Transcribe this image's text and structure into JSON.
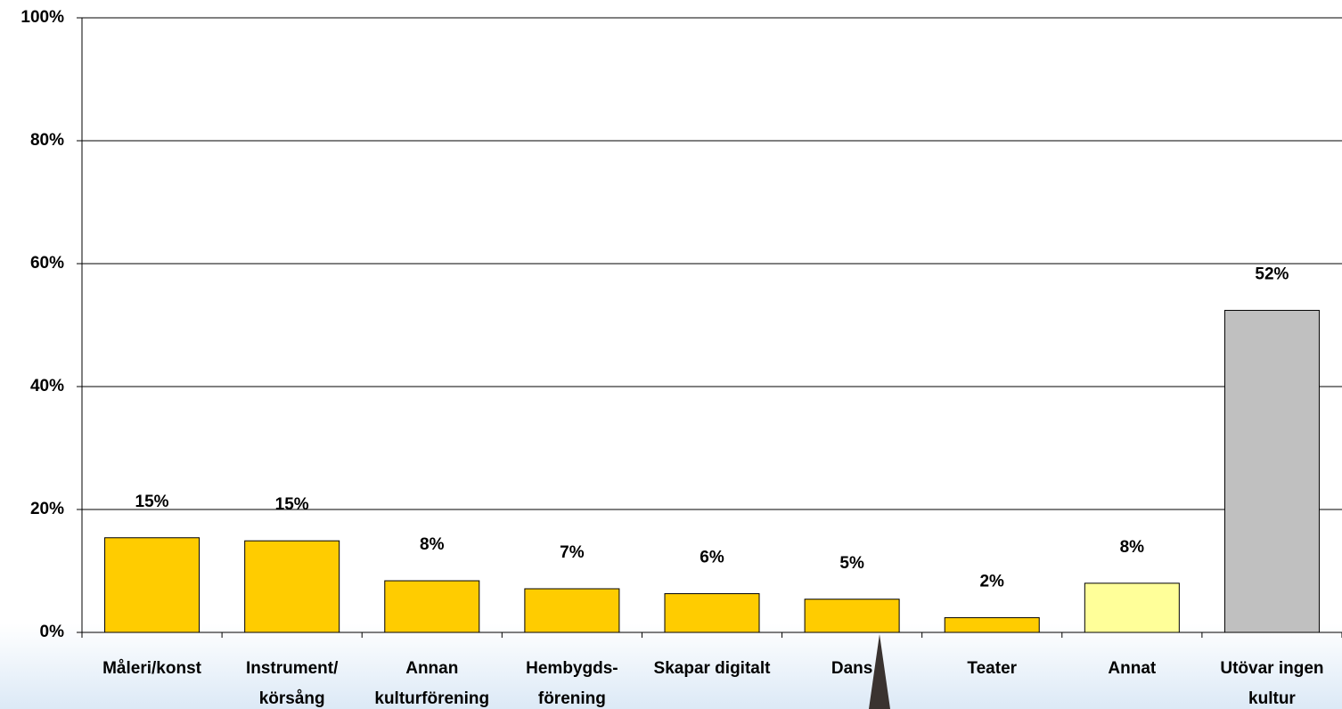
{
  "chart_data": {
    "type": "bar",
    "categories": [
      "Måleri/konst",
      "Instrument/\nkörsång",
      "Annan\nkulturförening",
      "Hembygds-\nförening",
      "Skapar digitalt",
      "Dans",
      "Teater",
      "Annat",
      "Utövar ingen\nkultur"
    ],
    "values": [
      15.4,
      14.9,
      8.4,
      7.1,
      6.3,
      5.4,
      2.4,
      8.0,
      52.4
    ],
    "value_labels": [
      "15%",
      "15%",
      "8%",
      "7%",
      "6%",
      "5%",
      "2%",
      "8%",
      "52%"
    ],
    "colors": [
      "#ffcc00",
      "#ffcc00",
      "#ffcc00",
      "#ffcc00",
      "#ffcc00",
      "#ffcc00",
      "#ffcc00",
      "#ffff99",
      "#c0c0c0"
    ],
    "ylim": [
      0,
      100
    ],
    "yticks": [
      {
        "value": 0,
        "label": "0%"
      },
      {
        "value": 20,
        "label": "20%"
      },
      {
        "value": 40,
        "label": "40%"
      },
      {
        "value": 60,
        "label": "60%"
      },
      {
        "value": 80,
        "label": "80%"
      },
      {
        "value": 100,
        "label": "100%"
      }
    ],
    "grid": true
  }
}
